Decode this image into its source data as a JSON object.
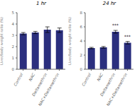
{
  "chart_data": [
    {
      "type": "bar",
      "title": "1 hr",
      "ylabel": "Liver/body weight ratio (%)",
      "categories": [
        "Control",
        "NAC",
        "Deltamethrin",
        "NAC+Deltamethrin"
      ],
      "values": [
        3.15,
        3.25,
        3.5,
        3.45
      ],
      "errors": [
        0.1,
        0.1,
        0.25,
        0.2
      ],
      "color": "#2b2f7e",
      "ylim": [
        0,
        5
      ],
      "yticks": [
        0,
        1,
        2,
        3,
        4,
        5
      ]
    },
    {
      "type": "bar",
      "title": "24 hr",
      "ylabel": "Liver/body weight ratio (%)",
      "categories": [
        "Control",
        "NAC",
        "Deltamethrin",
        "NAC+Deltamethrin"
      ],
      "values": [
        3.0,
        3.1,
        5.3,
        3.75
      ],
      "errors": [
        0.1,
        0.12,
        0.2,
        0.18
      ],
      "color": "#2b2f7e",
      "ylim": [
        0,
        8
      ],
      "yticks": [
        0,
        2,
        4,
        6,
        8
      ],
      "annotations": [
        {
          "category": "Deltamethrin",
          "text": "***"
        },
        {
          "category": "NAC+Deltamethrin",
          "text": "***"
        }
      ]
    }
  ]
}
